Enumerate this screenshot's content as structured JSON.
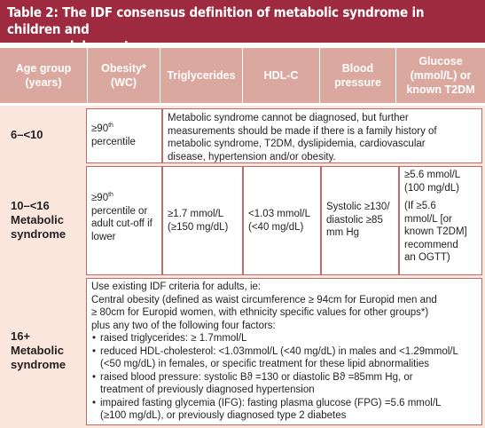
{
  "title": {
    "line1": "Table 2: The IDF consensus definition of metabolic syndrome in children and",
    "line2": "adolescents"
  },
  "headers": [
    {
      "line1": "Age group",
      "line2": "(years)"
    },
    {
      "line1": "Obesity*",
      "line2": "(WC)"
    },
    {
      "line1": "Triglycerides",
      "line2": ""
    },
    {
      "line1": "HDL-C",
      "line2": ""
    },
    {
      "line1": "Blood",
      "line2": "pressure"
    },
    {
      "line1": "Glucose",
      "line2": "(mmol/L) or",
      "line3": "known T2DM"
    }
  ],
  "rows": {
    "r1": {
      "age": "6–<10",
      "obesity_a": "≥90",
      "obesity_sup": "th",
      "obesity_b": "percentile",
      "note_lines": [
        "Metabolic syndrome cannot be diagnosed, but further",
        "measurements should be made if there is a family history of",
        "metabolic syndrome, T2DM, dyslipidemia, cardiovascular",
        "disease, hypertension and/or obesity."
      ]
    },
    "r2": {
      "age_lines": [
        "10–<16",
        "Metabolic",
        "syndrome"
      ],
      "obesity_a": "≥90",
      "obesity_sup": "th",
      "obesity_lines": [
        "percentile or",
        "adult cut-off if",
        "lower"
      ],
      "tg_lines": [
        "≥1.7 mmol/L",
        "(≥150 mg/dL)"
      ],
      "hdl_lines": [
        "<1.03 mmol/L",
        "(<40 mg/dL)"
      ],
      "bp_lines": [
        "Systolic ≥130/",
        "diastolic ≥85",
        "mm Hg"
      ],
      "glucose_lines": [
        "≥5.6 mmol/L",
        "(100 mg/dL)",
        "",
        "(If ≥5.6",
        "mmol/L [or",
        "known T2DM]",
        "recommend",
        "an OGTT)"
      ]
    },
    "r3": {
      "age_lines": [
        "16+",
        "Metabolic",
        "syndrome"
      ],
      "intro_lines": [
        "Use existing IDF criteria for adults, ie:",
        "Central obesity (defined as waist circumference ≥ 94cm for Europid men and",
        "≥ 80cm for Europid women, with ethnicity specific values for other groups*)",
        "plus any two of the following four factors:"
      ],
      "bullets": [
        [
          "raised triglycerides: ≥ 1.7mmol/L"
        ],
        [
          "reduced HDL-cholesterol: <1.03mmol/L (<40 mg/dL) in males and <1.29mmol/L",
          "(<50 mg/dL) in females, or specific treatment for these lipid abnormalities"
        ],
        [
          "raised blood pressure: systolic Bϑ =130 or diastolic Bϑ =85mm Hg, or",
          "treatment of previously diagnosed hypertension"
        ],
        [
          "impaired fasting glycemia (IFG): fasting plasma glucose (FPG) =5.6 mmol/L",
          "(≥100 mg/dL), or previously diagnosed type 2 diabetes"
        ]
      ]
    }
  }
}
